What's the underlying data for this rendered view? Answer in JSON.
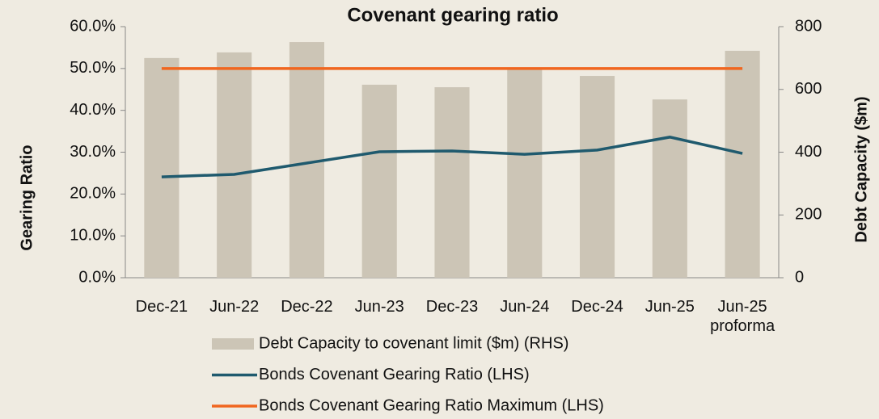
{
  "chart_data": {
    "type": "bar_line",
    "title": "Covenant gearing ratio",
    "ylabel": "Gearing Ratio",
    "y2label": "Debt Capacity ($m)",
    "categories": [
      "Dec-21",
      "Jun-22",
      "Dec-22",
      "Jun-23",
      "Dec-23",
      "Jun-24",
      "Dec-24",
      "Jun-25",
      "Jun-25 proforma"
    ],
    "series": [
      {
        "name": "Debt Capacity to covenant limit ($m) (RHS)",
        "type": "bar",
        "axis": "y2",
        "color": "#ccc5b6",
        "values": [
          700,
          718,
          751,
          615,
          607,
          670,
          643,
          568,
          723
        ]
      },
      {
        "name": "Bonds Covenant Gearing Ratio (LHS)",
        "type": "line",
        "color": "#1f5a6e",
        "values": [
          24.1,
          24.7,
          27.4,
          30.1,
          30.3,
          29.5,
          30.5,
          33.6,
          29.7
        ]
      },
      {
        "name": "Bonds Covenant Gearing Ratio Maximum (LHS)",
        "type": "line",
        "color": "#f0661f",
        "values": [
          50,
          50,
          50,
          50,
          50,
          50,
          50,
          50,
          50
        ]
      }
    ],
    "ylim": [
      0,
      60
    ],
    "yticks": [
      {
        "value": 0,
        "label": "0.0%"
      },
      {
        "value": 10,
        "label": "10.0%"
      },
      {
        "value": 20,
        "label": "20.0%"
      },
      {
        "value": 30,
        "label": "30.0%"
      },
      {
        "value": 40,
        "label": "40.0%"
      },
      {
        "value": 50,
        "label": "50.0%"
      },
      {
        "value": 60,
        "label": "60.0%"
      }
    ],
    "y2lim": [
      0,
      800
    ],
    "y2ticks": [
      0,
      200,
      400,
      600,
      800
    ],
    "legend": "bottom"
  }
}
